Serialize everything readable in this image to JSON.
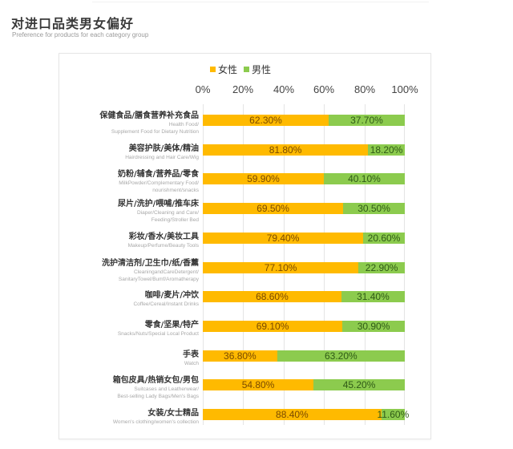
{
  "header": {
    "title": "对进口品类男女偏好",
    "subtitle": "Preference for products for each category group"
  },
  "colors": {
    "female": "#FFBA00",
    "male": "#8CCB4E",
    "grid": "#E4E4E4"
  },
  "legend": [
    {
      "label": "女性",
      "color": "#FFBA00"
    },
    {
      "label": "男性",
      "color": "#8CCB4E"
    }
  ],
  "axis": {
    "ticks": [
      "0%",
      "20%",
      "40%",
      "60%",
      "80%",
      "100%"
    ]
  },
  "chart_data": {
    "type": "bar",
    "orientation": "horizontal",
    "stacked": true,
    "title": "对进口品类男女偏好",
    "subtitle": "Preference for products for each category group",
    "xlabel": "",
    "ylabel": "",
    "xlim": [
      0,
      100
    ],
    "x_ticks": [
      "0%",
      "20%",
      "40%",
      "60%",
      "80%",
      "100%"
    ],
    "grid": true,
    "legend_position": "top",
    "categories": [
      {
        "cn": "保健食品/膳食营养补充食品",
        "en": [
          "Health Food/",
          "Supplement Food for Dietary Nutrition"
        ]
      },
      {
        "cn": "美容护肤/美体/精油",
        "en": [
          "Hairdressing and Hair Care/Wig"
        ]
      },
      {
        "cn": "奶粉/辅食/营养品/零食",
        "en": [
          "MilkPowder/Complementary Food/",
          "nourishment/snacks"
        ]
      },
      {
        "cn": "尿片/洗护/喂哺/推车床",
        "en": [
          "Diaper/Cleaning and Care/",
          "Feeding/Stroller Bed"
        ]
      },
      {
        "cn": "彩妆/香水/美妆工具",
        "en": [
          "Makeup/Perfume/Beauty Tools"
        ]
      },
      {
        "cn": "洗护清洁剂/卫生巾/纸/香薰",
        "en": [
          "CleaningandCareDetergent/",
          "SanitaryTowel/Bumf/Aromatherapy"
        ]
      },
      {
        "cn": "咖啡/麦片/冲饮",
        "en": [
          "Coffee/Cereal/Instant Drinks"
        ]
      },
      {
        "cn": "零食/坚果/特产",
        "en": [
          "Snacks/Nuts/Special Local Product"
        ]
      },
      {
        "cn": "手表",
        "en": [
          "Watch"
        ]
      },
      {
        "cn": "箱包皮具/热销女包/男包",
        "en": [
          "Suitcases and Leatherwear/",
          "Best-selling Lady Bags/Men's Bags"
        ]
      },
      {
        "cn": "女装/女士精品",
        "en": [
          "Women's clothing/women's collection"
        ]
      }
    ],
    "series": [
      {
        "name": "女性",
        "color": "#FFBA00",
        "values": [
          62.3,
          81.8,
          59.9,
          69.5,
          79.4,
          77.1,
          68.6,
          69.1,
          36.8,
          54.8,
          88.4
        ],
        "labels": [
          "62.30%",
          "81.80%",
          "59.90%",
          "69.50%",
          "79.40%",
          "77.10%",
          "68.60%",
          "69.10%",
          "36.80%",
          "54.80%",
          "88.40%"
        ]
      },
      {
        "name": "男性",
        "color": "#8CCB4E",
        "values": [
          37.7,
          18.2,
          40.1,
          30.5,
          20.6,
          22.9,
          31.4,
          30.9,
          63.2,
          45.2,
          11.6
        ],
        "labels": [
          "37.70%",
          "18.20%",
          "40.10%",
          "30.50%",
          "20.60%",
          "22.90%",
          "31.40%",
          "30.90%",
          "63.20%",
          "45.20%",
          "11.60%"
        ]
      }
    ]
  }
}
